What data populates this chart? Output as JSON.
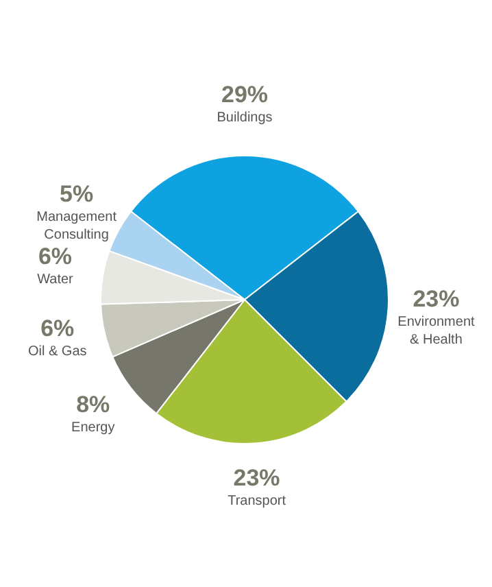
{
  "chart_data": {
    "type": "pie",
    "categories": [
      "Buildings",
      "Environment\n& Health",
      "Transport",
      "Energy",
      "Oil & Gas",
      "Water",
      "Management\nConsulting"
    ],
    "values": [
      29,
      23,
      23,
      8,
      6,
      6,
      5
    ],
    "colors": [
      "#0ea3e0",
      "#0b6d9e",
      "#a3c037",
      "#77766a",
      "#c9c8bd",
      "#e8e8e2",
      "#a9d3f0"
    ],
    "value_labels": [
      "29%",
      "23%",
      "23%",
      "8%",
      "6%",
      "6%",
      "5%"
    ]
  }
}
